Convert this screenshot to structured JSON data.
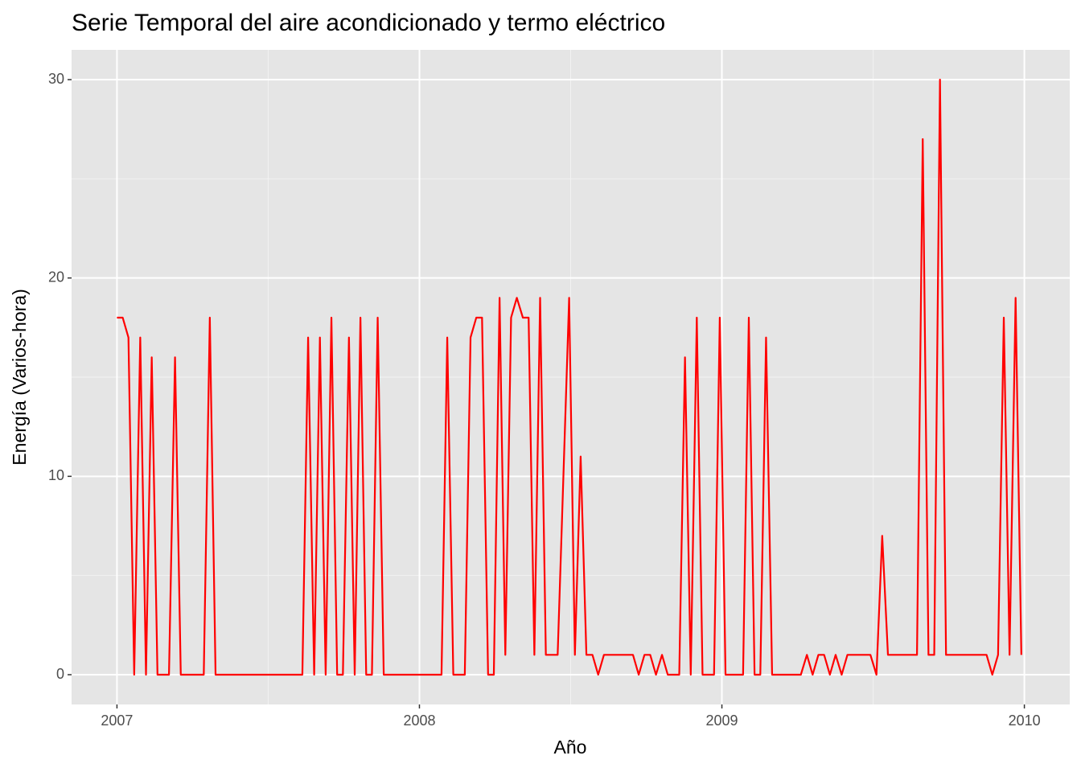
{
  "chart_data": {
    "type": "line",
    "title": "Serie Temporal del aire acondicionado y termo eléctrico",
    "x_label": "Año",
    "y_label": "Energía (Varios-hora)",
    "xlim": [
      2006.85,
      2010.15
    ],
    "ylim": [
      -1.5,
      31.5
    ],
    "xticks": [
      2007,
      2008,
      2009,
      2010
    ],
    "yticks": [
      0,
      10,
      20,
      30
    ],
    "grid": true,
    "x": [
      2007.0,
      2007.019,
      2007.038,
      2007.057,
      2007.077,
      2007.096,
      2007.115,
      2007.134,
      2007.153,
      2007.172,
      2007.192,
      2007.211,
      2007.23,
      2007.249,
      2007.268,
      2007.287,
      2007.307,
      2007.326,
      2007.345,
      2007.364,
      2007.383,
      2007.402,
      2007.422,
      2007.441,
      2007.46,
      2007.479,
      2007.498,
      2007.517,
      2007.537,
      2007.556,
      2007.575,
      2007.594,
      2007.613,
      2007.632,
      2007.652,
      2007.671,
      2007.69,
      2007.709,
      2007.728,
      2007.747,
      2007.767,
      2007.786,
      2007.805,
      2007.824,
      2007.843,
      2007.862,
      2007.882,
      2007.901,
      2007.92,
      2007.939,
      2007.958,
      2007.977,
      2007.997,
      2008.016,
      2008.035,
      2008.054,
      2008.073,
      2008.092,
      2008.112,
      2008.131,
      2008.15,
      2008.169,
      2008.188,
      2008.207,
      2008.227,
      2008.246,
      2008.265,
      2008.284,
      2008.303,
      2008.322,
      2008.342,
      2008.361,
      2008.38,
      2008.399,
      2008.418,
      2008.437,
      2008.457,
      2008.476,
      2008.495,
      2008.514,
      2008.533,
      2008.552,
      2008.572,
      2008.591,
      2008.61,
      2008.629,
      2008.648,
      2008.667,
      2008.687,
      2008.706,
      2008.725,
      2008.744,
      2008.763,
      2008.782,
      2008.802,
      2008.821,
      2008.84,
      2008.859,
      2008.878,
      2008.897,
      2008.917,
      2008.936,
      2008.955,
      2008.974,
      2008.993,
      2009.012,
      2009.031,
      2009.051,
      2009.07,
      2009.089,
      2009.108,
      2009.127,
      2009.146,
      2009.166,
      2009.185,
      2009.204,
      2009.223,
      2009.242,
      2009.261,
      2009.281,
      2009.3,
      2009.319,
      2009.338,
      2009.357,
      2009.376,
      2009.396,
      2009.415,
      2009.434,
      2009.453,
      2009.472,
      2009.491,
      2009.511,
      2009.53,
      2009.549,
      2009.568,
      2009.587,
      2009.606,
      2009.626,
      2009.645,
      2009.664,
      2009.683,
      2009.702,
      2009.721,
      2009.741,
      2009.76,
      2009.779,
      2009.798,
      2009.817,
      2009.836,
      2009.856,
      2009.875,
      2009.894,
      2009.913,
      2009.932,
      2009.951,
      2009.971,
      2009.99
    ],
    "series": [
      {
        "color": "#ff0000",
        "values": [
          18,
          18,
          17,
          0,
          17,
          0,
          16,
          0,
          0,
          0,
          16,
          0,
          0,
          0,
          0,
          0,
          18,
          0,
          0,
          0,
          0,
          0,
          0,
          0,
          0,
          0,
          0,
          0,
          0,
          0,
          0,
          0,
          0,
          17,
          0,
          17,
          0,
          18,
          0,
          0,
          17,
          0,
          18,
          0,
          0,
          18,
          0,
          0,
          0,
          0,
          0,
          0,
          0,
          0,
          0,
          0,
          0,
          17,
          0,
          0,
          0,
          17,
          18,
          18,
          0,
          0,
          19,
          1,
          18,
          19,
          18,
          18,
          1,
          19,
          1,
          1,
          1,
          10,
          19,
          1,
          11,
          1,
          1,
          0,
          1,
          1,
          1,
          1,
          1,
          1,
          0,
          1,
          1,
          0,
          1,
          0,
          0,
          0,
          16,
          0,
          18,
          0,
          0,
          0,
          18,
          0,
          0,
          0,
          0,
          18,
          0,
          0,
          17,
          0,
          0,
          0,
          0,
          0,
          0,
          1,
          0,
          1,
          1,
          0,
          1,
          0,
          1,
          1,
          1,
          1,
          1,
          0,
          7,
          1,
          1,
          1,
          1,
          1,
          1,
          27,
          1,
          1,
          30,
          1,
          1,
          1,
          1,
          1,
          1,
          1,
          1,
          0,
          1,
          18,
          1,
          19,
          1
        ]
      }
    ]
  }
}
